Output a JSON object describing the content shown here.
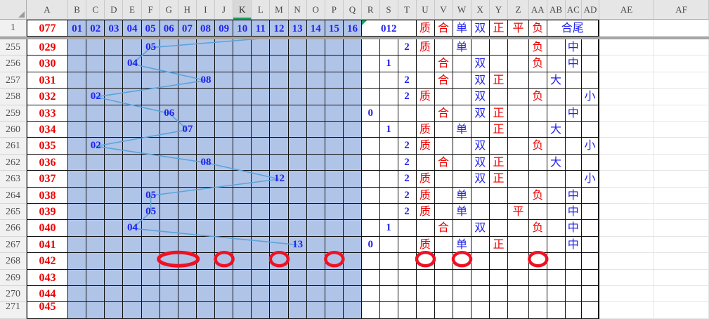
{
  "sheet": {
    "corner_label": "",
    "col_headers": [
      "A",
      "B",
      "C",
      "D",
      "E",
      "F",
      "G",
      "H",
      "I",
      "J",
      "K",
      "L",
      "M",
      "N",
      "O",
      "P",
      "Q",
      "R",
      "S",
      "T",
      "U",
      "V",
      "W",
      "X",
      "Y",
      "Z",
      "AA",
      "AB",
      "AC",
      "AD",
      "AE",
      "AF"
    ],
    "selected_col": "K",
    "header_row": {
      "n": "1",
      "a": "077",
      "ball_numbers": [
        "01",
        "02",
        "03",
        "04",
        "05",
        "06",
        "07",
        "08",
        "09",
        "10",
        "11",
        "12",
        "13",
        "14",
        "15",
        "16"
      ],
      "merged_012": "012",
      "cells": {
        "U": "质",
        "V": "合",
        "W": "单",
        "X": "双",
        "Y": "正",
        "Z": "平",
        "AA": "负"
      },
      "merged_hewei": "合尾",
      "flag_cell": "R1"
    },
    "data_rows": [
      {
        "n": "255",
        "a": "029",
        "val": "05",
        "cells": {
          "T": "2",
          "U": "质",
          "W": "单",
          "AA": "负",
          "AC": "中"
        }
      },
      {
        "n": "256",
        "a": "030",
        "val": "04",
        "cells": {
          "S": "1",
          "V": "合",
          "X": "双",
          "AA": "负",
          "AC": "中"
        }
      },
      {
        "n": "257",
        "a": "031",
        "val": "08",
        "cells": {
          "T": "2",
          "V": "合",
          "X": "双",
          "Y": "正",
          "AB": "大"
        }
      },
      {
        "n": "258",
        "a": "032",
        "val": "02",
        "cells": {
          "T": "2",
          "U": "质",
          "X": "双",
          "AA": "负",
          "AD": "小"
        }
      },
      {
        "n": "259",
        "a": "033",
        "val": "06",
        "cells": {
          "R": "0",
          "V": "合",
          "X": "双",
          "Y": "正",
          "AC": "中"
        }
      },
      {
        "n": "260",
        "a": "034",
        "val": "07",
        "cells": {
          "S": "1",
          "U": "质",
          "W": "单",
          "Y": "正",
          "AB": "大"
        }
      },
      {
        "n": "261",
        "a": "035",
        "val": "02",
        "cells": {
          "T": "2",
          "U": "质",
          "X": "双",
          "AA": "负",
          "AD": "小"
        }
      },
      {
        "n": "262",
        "a": "036",
        "val": "08",
        "cells": {
          "T": "2",
          "V": "合",
          "X": "双",
          "Y": "正",
          "AB": "大"
        }
      },
      {
        "n": "263",
        "a": "037",
        "val": "12",
        "cells": {
          "T": "2",
          "U": "质",
          "X": "双",
          "Y": "正",
          "AD": "小"
        }
      },
      {
        "n": "264",
        "a": "038",
        "val": "05",
        "cells": {
          "T": "2",
          "U": "质",
          "W": "单",
          "AA": "负",
          "AC": "中"
        }
      },
      {
        "n": "265",
        "a": "039",
        "val": "05",
        "cells": {
          "T": "2",
          "U": "质",
          "W": "单",
          "Z": "平",
          "AC": "中"
        }
      },
      {
        "n": "266",
        "a": "040",
        "val": "04",
        "cells": {
          "S": "1",
          "V": "合",
          "X": "双",
          "AA": "负",
          "AC": "中"
        }
      },
      {
        "n": "267",
        "a": "041",
        "val": "13",
        "cells": {
          "R": "0",
          "U": "质",
          "W": "单",
          "Y": "正",
          "AC": "中"
        }
      },
      {
        "n": "268",
        "a": "042",
        "val": "",
        "cells": {}
      },
      {
        "n": "269",
        "a": "043",
        "val": "",
        "cells": {}
      },
      {
        "n": "270",
        "a": "044",
        "val": "",
        "cells": {}
      },
      {
        "n": "271",
        "a": "045",
        "val": "",
        "cells": {}
      }
    ],
    "char_colors": {
      "质": "red",
      "合": "red",
      "单": "blue",
      "双": "blue",
      "正": "red",
      "平": "red",
      "负": "red",
      "大": "blue",
      "中": "blue",
      "小": "blue"
    },
    "annotations": {
      "circles_row": "268",
      "circle_cols": [
        "G:H",
        "J",
        "M",
        "P",
        "U",
        "W",
        "AA"
      ]
    },
    "colors": {
      "fill_blue": "#B0C4E8",
      "grid_black": "#111111",
      "text_blue": "#2222EE",
      "text_red": "#EE0000",
      "line_blue": "#5BA3DC",
      "circle_red": "#EE1122",
      "header_bg": "#E6E6E6",
      "header_sel_bg": "#D8D8D8",
      "sel_green": "#18A05E",
      "gutter_bg": "#F1F1F1",
      "faint_grid": "#E6E6E6",
      "split_gray": "#A6A6A6"
    }
  }
}
